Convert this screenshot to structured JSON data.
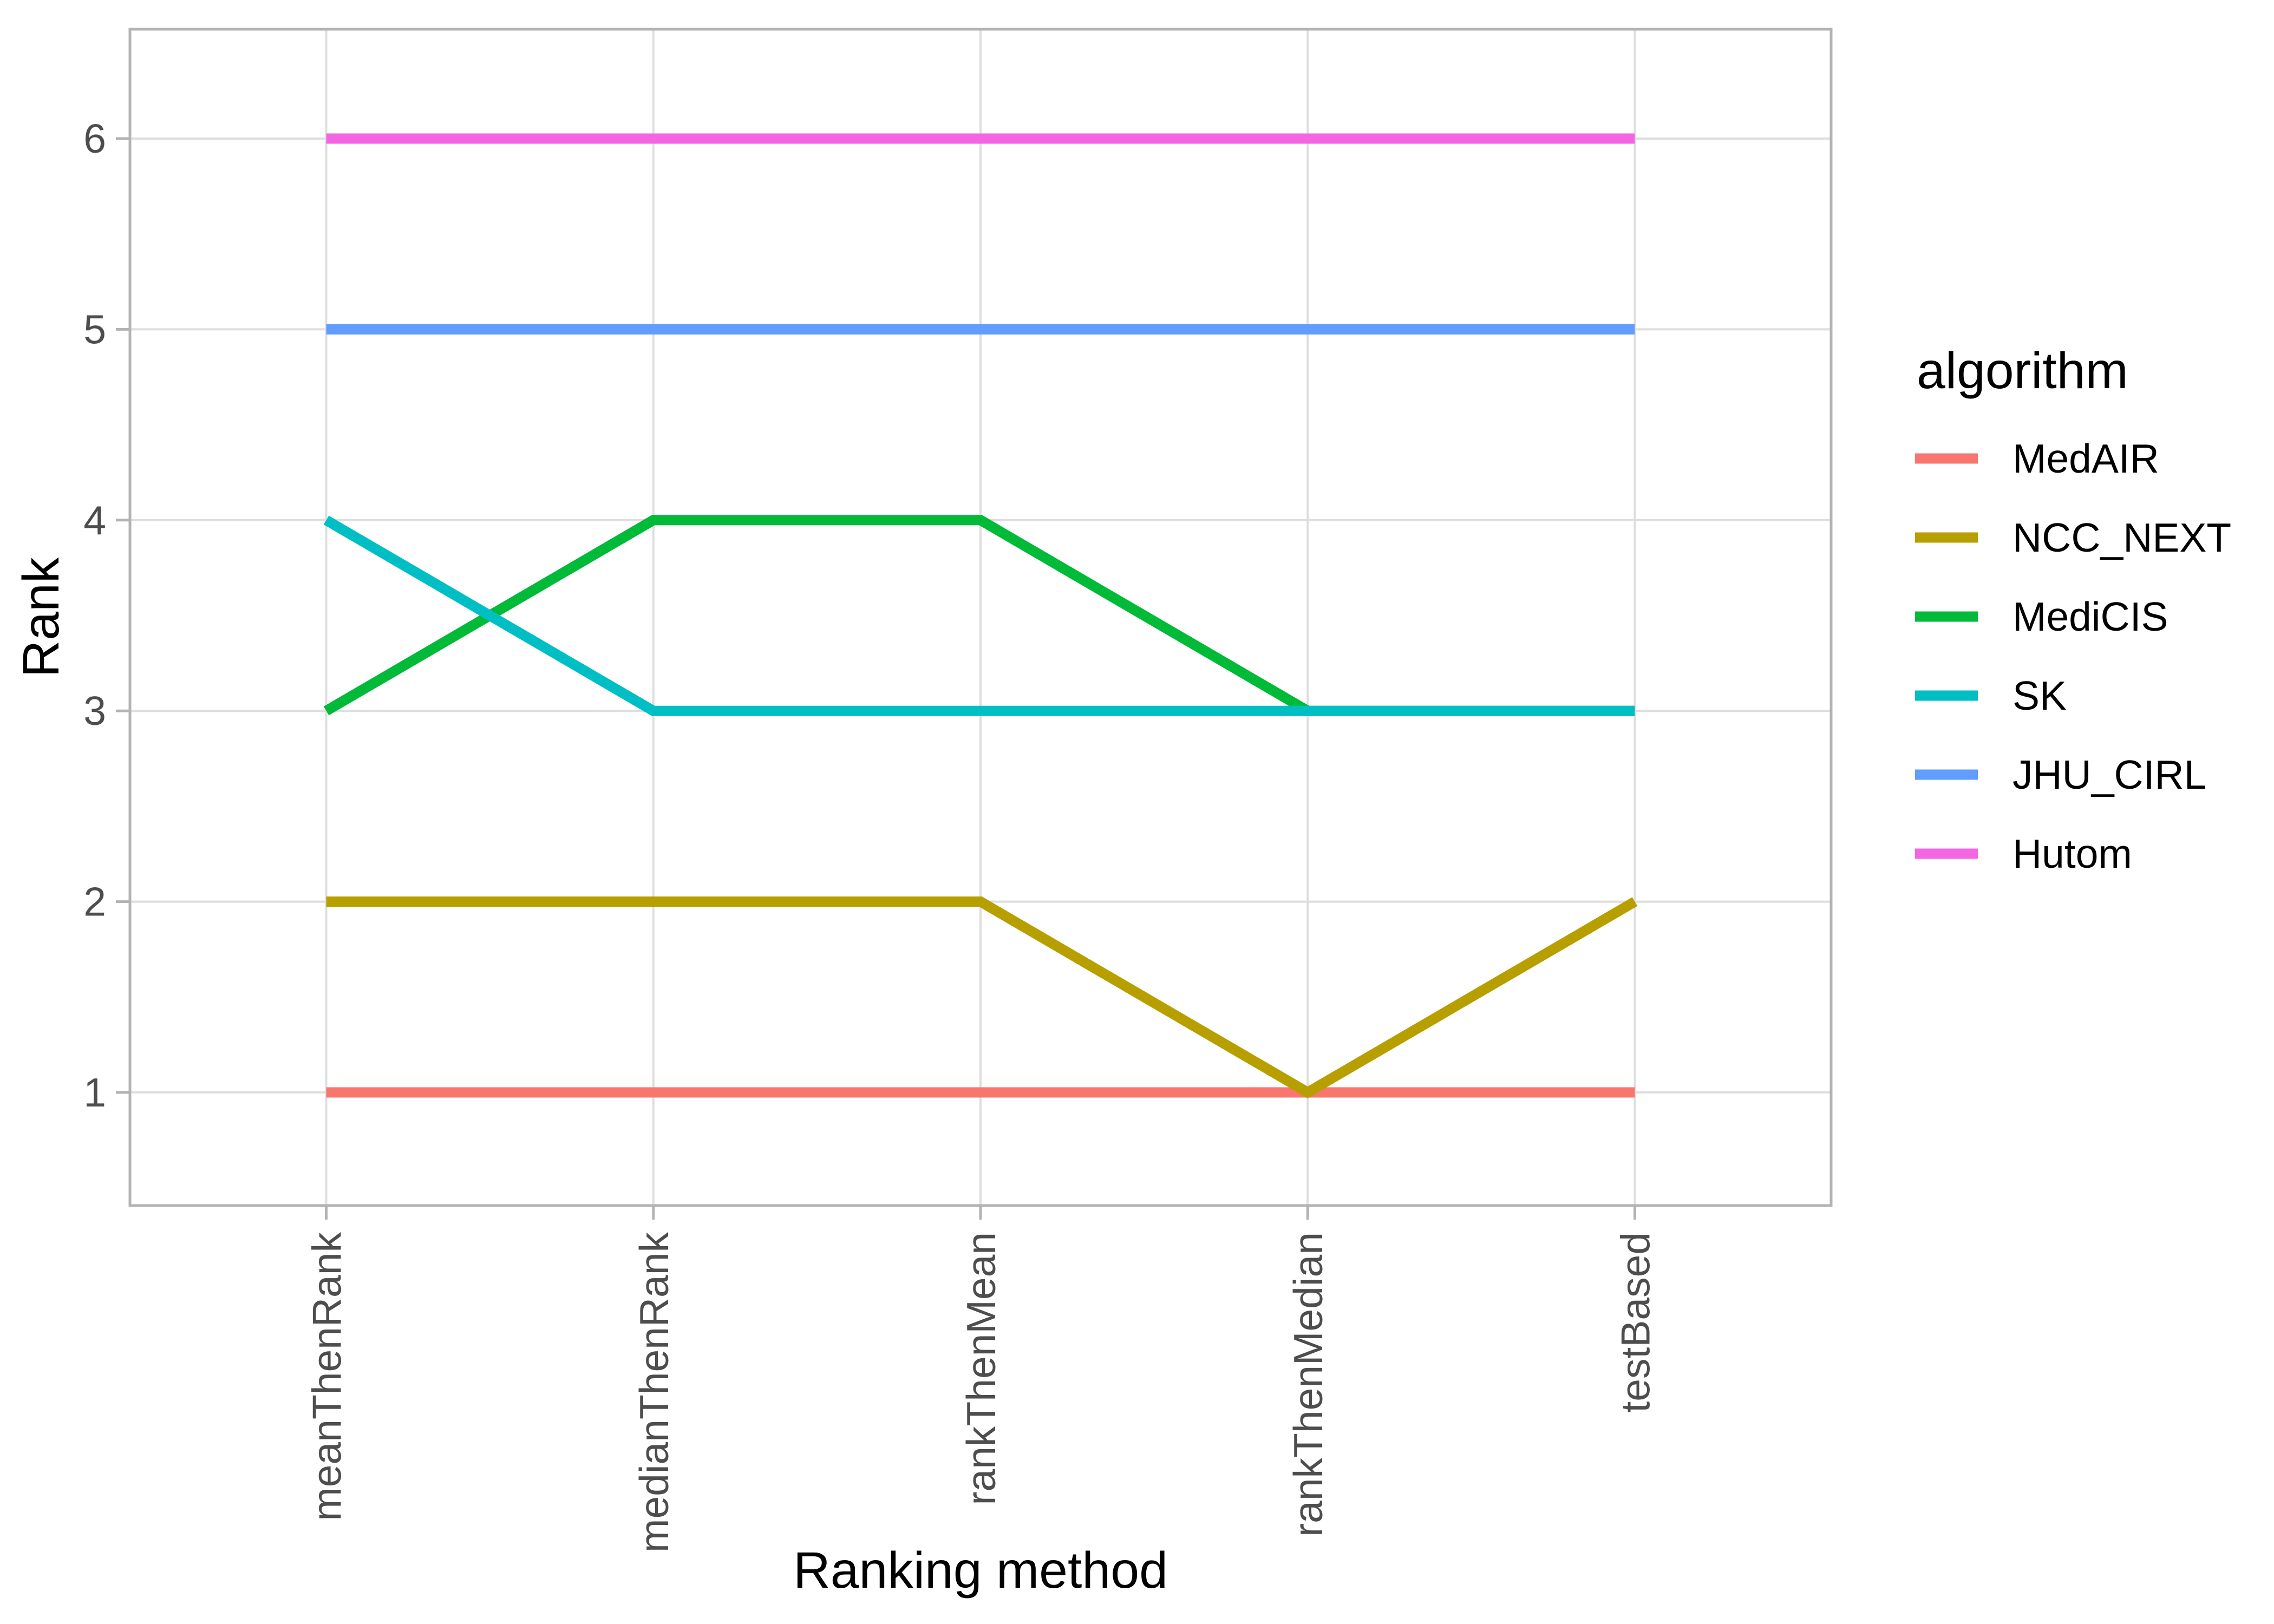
{
  "chart_data": {
    "type": "line",
    "title": "",
    "xlabel": "Ranking method",
    "ylabel": "Rank",
    "categories": [
      "meanThenRank",
      "medianThenRank",
      "rankThenMean",
      "rankThenMedian",
      "testBased"
    ],
    "yticks": [
      "1",
      "2",
      "3",
      "4",
      "5",
      "6"
    ],
    "ylim": [
      0.4,
      6.6
    ],
    "grid": "major-only",
    "legend": {
      "title": "algorithm",
      "position": "right"
    },
    "series": [
      {
        "name": "MedAIR",
        "color": "#F8766D",
        "values": [
          1,
          1,
          1,
          1,
          1
        ]
      },
      {
        "name": "NCC_NEXT",
        "color": "#B79F00",
        "values": [
          2,
          2,
          2,
          1,
          2
        ]
      },
      {
        "name": "MediCIS",
        "color": "#00BA38",
        "values": [
          3,
          4,
          4,
          3,
          3
        ]
      },
      {
        "name": "SK",
        "color": "#00BFC4",
        "values": [
          4,
          3,
          3,
          3,
          3
        ]
      },
      {
        "name": "JHU_CIRL",
        "color": "#619CFF",
        "values": [
          5,
          5,
          5,
          5,
          5
        ]
      },
      {
        "name": "Hutom",
        "color": "#F564E3",
        "values": [
          6,
          6,
          6,
          6,
          6
        ]
      }
    ]
  },
  "styles": {
    "background": "#FFFFFF",
    "grid_color": "#DEDEDE",
    "panel_border_color": "#B3B3B3",
    "tick_color": "#B3B3B3",
    "axis_text_color": "#4D4D4D",
    "title_color": "#000000"
  }
}
